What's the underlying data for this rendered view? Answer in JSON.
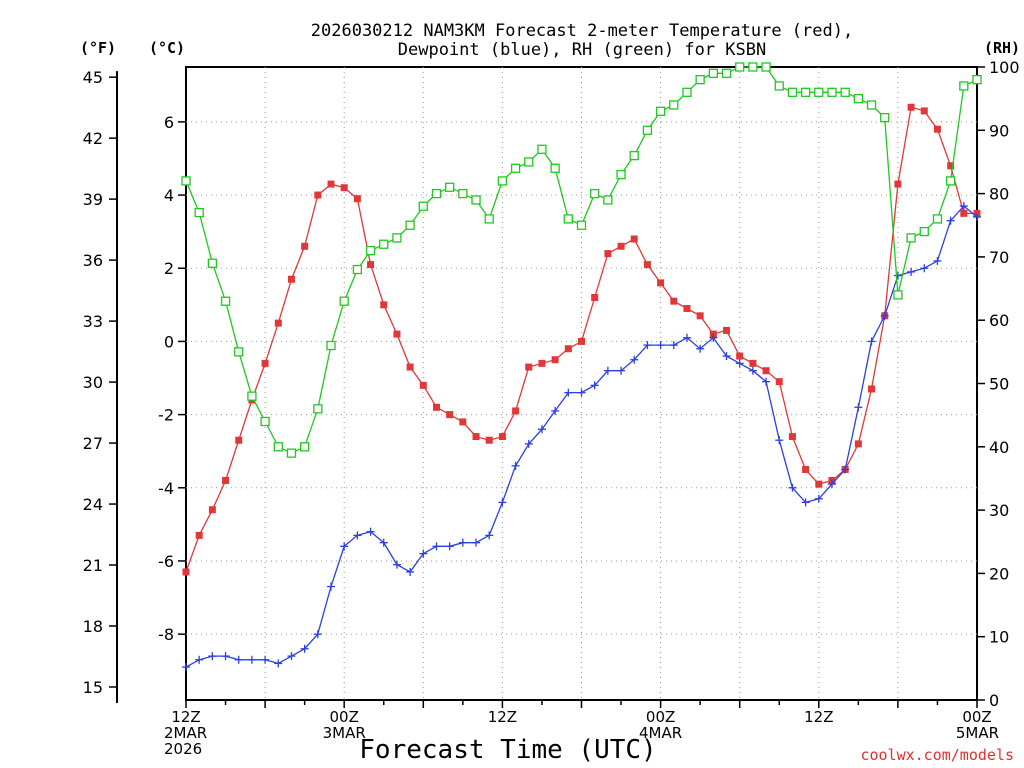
{
  "chart_data": {
    "type": "line",
    "title_line1": "2026030212 NAM3KM Forecast 2-meter Temperature (red),",
    "title_line2": "Dewpoint (blue), RH (green) for KSBN",
    "units": {
      "fahrenheit": "(°F)",
      "celsius": "(°C)",
      "rh": "(RH)"
    },
    "xlabel": "Forecast Time (UTC)",
    "credit": "coolwx.com/models",
    "x_range": [
      0,
      60
    ],
    "x_ticks": [
      {
        "x": 0,
        "lines": [
          "12Z",
          "2MAR",
          "2026"
        ]
      },
      {
        "x": 12,
        "lines": [
          "00Z",
          "3MAR"
        ]
      },
      {
        "x": 24,
        "lines": [
          "12Z"
        ]
      },
      {
        "x": 36,
        "lines": [
          "00Z",
          "4MAR"
        ]
      },
      {
        "x": 48,
        "lines": [
          "12Z"
        ]
      },
      {
        "x": 60,
        "lines": [
          "00Z",
          "5MAR"
        ]
      }
    ],
    "celsius_range": [
      -9.8,
      7.5
    ],
    "celsius_ticks": [
      "-8",
      "-6",
      "-4",
      "-2",
      "0",
      "2",
      "4",
      "6"
    ],
    "fahrenheit_ticks": [
      "15",
      "18",
      "21",
      "24",
      "27",
      "30",
      "33",
      "36",
      "39",
      "42",
      "45"
    ],
    "rh_range": [
      0,
      100
    ],
    "rh_ticks": [
      "0",
      "10",
      "20",
      "30",
      "40",
      "50",
      "60",
      "70",
      "80",
      "90",
      "100"
    ],
    "series": [
      {
        "name": "Temperature",
        "axis": "celsius",
        "color": "#e03838",
        "marker": "filled-square",
        "x": [
          0,
          1,
          2,
          3,
          4,
          5,
          6,
          7,
          8,
          9,
          10,
          11,
          12,
          13,
          14,
          15,
          16,
          17,
          18,
          19,
          20,
          21,
          22,
          23,
          24,
          25,
          26,
          27,
          28,
          29,
          30,
          31,
          32,
          33,
          34,
          35,
          36,
          37,
          38,
          39,
          40,
          41,
          42,
          43,
          44,
          45,
          46,
          47,
          48,
          49,
          50,
          51,
          52,
          53,
          54,
          55,
          56,
          57,
          58,
          59,
          60
        ],
        "values": [
          -6.3,
          -5.3,
          -4.6,
          -3.8,
          -2.7,
          -1.6,
          -0.6,
          0.5,
          1.7,
          2.6,
          4.0,
          4.3,
          4.2,
          3.9,
          2.1,
          1.0,
          0.2,
          -0.7,
          -1.2,
          -1.8,
          -2.0,
          -2.2,
          -2.6,
          -2.7,
          -2.6,
          -1.9,
          -0.7,
          -0.6,
          -0.5,
          -0.2,
          0.0,
          1.2,
          2.4,
          2.6,
          2.8,
          2.1,
          1.6,
          1.1,
          0.9,
          0.7,
          0.2,
          0.3,
          -0.4,
          -0.6,
          -0.8,
          -1.1,
          -2.6,
          -3.5,
          -3.9,
          -3.8,
          -3.5,
          -2.8,
          -1.3,
          0.7,
          4.3,
          6.4,
          6.3,
          5.8,
          4.8,
          3.5,
          3.5
        ]
      },
      {
        "name": "Dewpoint",
        "axis": "celsius",
        "color": "#2a40e0",
        "marker": "plus",
        "x": [
          0,
          1,
          2,
          3,
          4,
          5,
          6,
          7,
          8,
          9,
          10,
          11,
          12,
          13,
          14,
          15,
          16,
          17,
          18,
          19,
          20,
          21,
          22,
          23,
          24,
          25,
          26,
          27,
          28,
          29,
          30,
          31,
          32,
          33,
          34,
          35,
          36,
          37,
          38,
          39,
          40,
          41,
          42,
          43,
          44,
          45,
          46,
          47,
          48,
          49,
          50,
          51,
          52,
          53,
          54,
          55,
          56,
          57,
          58,
          59,
          60
        ],
        "values": [
          -8.9,
          -8.7,
          -8.6,
          -8.6,
          -8.7,
          -8.7,
          -8.7,
          -8.8,
          -8.6,
          -8.4,
          -8.0,
          -6.7,
          -5.6,
          -5.3,
          -5.2,
          -5.5,
          -6.1,
          -6.3,
          -5.8,
          -5.6,
          -5.6,
          -5.5,
          -5.5,
          -5.3,
          -4.4,
          -3.4,
          -2.8,
          -2.4,
          -1.9,
          -1.4,
          -1.4,
          -1.2,
          -0.8,
          -0.8,
          -0.5,
          -0.1,
          -0.1,
          -0.1,
          0.1,
          -0.2,
          0.1,
          -0.4,
          -0.6,
          -0.8,
          -1.1,
          -2.7,
          -4.0,
          -4.4,
          -4.3,
          -3.9,
          -3.5,
          -1.8,
          0.0,
          0.7,
          1.8,
          1.9,
          2.0,
          2.2,
          3.3,
          3.7,
          3.4
        ]
      },
      {
        "name": "RH",
        "axis": "rh",
        "color": "#20c820",
        "marker": "open-square",
        "x": [
          0,
          1,
          2,
          3,
          4,
          5,
          6,
          7,
          8,
          9,
          10,
          11,
          12,
          13,
          14,
          15,
          16,
          17,
          18,
          19,
          20,
          21,
          22,
          23,
          24,
          25,
          26,
          27,
          28,
          29,
          30,
          31,
          32,
          33,
          34,
          35,
          36,
          37,
          38,
          39,
          40,
          41,
          42,
          43,
          44,
          45,
          46,
          47,
          48,
          49,
          50,
          51,
          52,
          53,
          54,
          55,
          56,
          57,
          58,
          59,
          60
        ],
        "values": [
          82,
          77,
          69,
          63,
          55,
          48,
          44,
          40,
          39,
          40,
          46,
          56,
          63,
          68,
          71,
          72,
          73,
          75,
          78,
          80,
          81,
          80,
          79,
          76,
          82,
          84,
          85,
          87,
          84,
          76,
          75,
          80,
          79,
          83,
          86,
          90,
          93,
          94,
          96,
          98,
          99,
          99,
          100,
          100,
          100,
          97,
          96,
          96,
          96,
          96,
          96,
          95,
          94,
          92,
          64,
          73,
          74,
          76,
          82,
          97,
          98
        ]
      }
    ]
  }
}
